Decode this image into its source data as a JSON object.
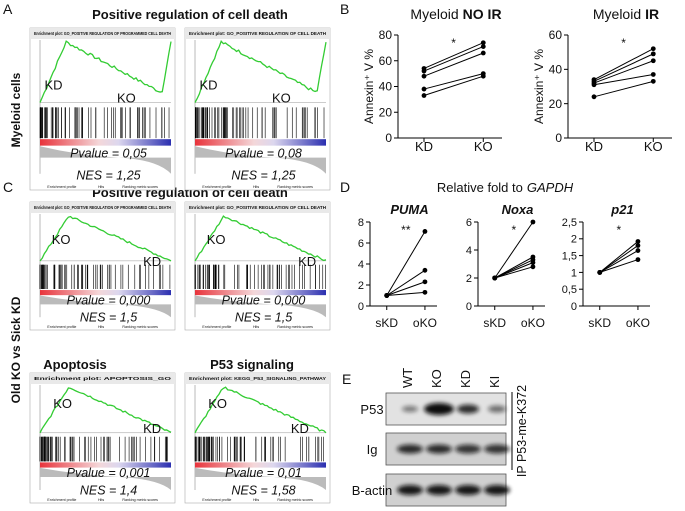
{
  "panel_a": {
    "label": "A",
    "title": "Positive regulation of cell death",
    "side_label": "Myeloid cells",
    "plots": [
      {
        "plot_title": "Enrichment plot: GO_POSITIVE REGULATION OF PROGRAMMED CELL DEATH",
        "left_label": "KD",
        "right_label": "KO",
        "pvalue": "Pvalue = 0,05",
        "nes": "NES = 1,25"
      },
      {
        "plot_title": "Enrichment plot: GO_POSITIVE REGULATION OF CELL DEATH",
        "left_label": "KD",
        "right_label": "KO",
        "pvalue": "Pvalue = 0,08",
        "nes": "NES = 1,25"
      }
    ]
  },
  "panel_b": {
    "label": "B"
  },
  "panel_c": {
    "label": "C",
    "title": "Positive regulation of cell death",
    "side_label": "Old KO vs Sick KD",
    "plots": [
      {
        "plot_title": "Enrichment plot: GO_POSITIVE REGULATION OF PROGRAMMED CELL DEATH",
        "left_label": "KO",
        "right_label": "KD",
        "pvalue": "Pvalue = 0,000",
        "nes": "NES = 1,5"
      },
      {
        "plot_title": "Enrichment plot: GO_POSITIVE REGULATION OF CELL DEATH",
        "left_label": "KO",
        "right_label": "KD",
        "pvalue": "Pvalue = 0,000",
        "nes": "NES = 1,5"
      },
      {
        "heading": "Apoptosis",
        "plot_title": "Enrichment plot: APOPTOSIS_GO",
        "left_label": "KO",
        "right_label": "KD",
        "pvalue": "Pvalue = 0,001",
        "nes": "NES = 1,4"
      },
      {
        "heading": "P53 signaling",
        "plot_title": "Enrichment plot: KEGG_P53_SIGNALING_PATHWAY",
        "left_label": "KO",
        "right_label": "KD",
        "pvalue": "Pvalue = 0,01",
        "nes": "NES = 1,58"
      }
    ]
  },
  "gsea_legend": [
    "Enrichment profile",
    "Hits",
    "Ranking metric scores"
  ],
  "panel_d": {
    "label": "D",
    "title": "Relative fold to",
    "title_italic": "GAPDH"
  },
  "panel_e": {
    "label": "E",
    "lanes": [
      "WT",
      "KO",
      "KD",
      "KI"
    ],
    "rows": [
      "P53",
      "Ig",
      "B-actin"
    ],
    "side_label": "IP P53-me-K372"
  },
  "chart_data": [
    {
      "type": "line",
      "title": "Myeloid",
      "title_bold": "NO IR",
      "ylabel": "Annexin⁺ V %",
      "categories": [
        "KD",
        "KO"
      ],
      "color": "#000000",
      "series": [
        {
          "values": [
            54,
            74
          ]
        },
        {
          "values": [
            52,
            71
          ]
        },
        {
          "values": [
            48,
            66
          ]
        },
        {
          "values": [
            38,
            50
          ]
        },
        {
          "values": [
            33,
            48
          ]
        }
      ],
      "ylim": [
        0,
        80
      ],
      "yticks": [
        0,
        20,
        40,
        60,
        80
      ],
      "annotation": "*"
    },
    {
      "type": "line",
      "title": "Myeloid",
      "title_bold": "IR",
      "ylabel": "Annexin⁺ V %",
      "categories": [
        "KD",
        "KO"
      ],
      "color": "#000000",
      "series": [
        {
          "values": [
            34,
            52
          ]
        },
        {
          "values": [
            33,
            49
          ]
        },
        {
          "values": [
            32,
            45
          ]
        },
        {
          "values": [
            31,
            37
          ]
        },
        {
          "values": [
            24,
            33
          ]
        }
      ],
      "ylim": [
        0,
        60
      ],
      "yticks": [
        0,
        20,
        40,
        60
      ],
      "annotation": "*"
    },
    {
      "type": "line",
      "title_bold": "PUMA",
      "categories": [
        "sKD",
        "oKO"
      ],
      "color": "#000000",
      "series": [
        {
          "values": [
            1,
            7.1
          ]
        },
        {
          "values": [
            1,
            3.4
          ]
        },
        {
          "values": [
            1,
            2.3
          ]
        },
        {
          "values": [
            1,
            1.3
          ]
        }
      ],
      "ylim": [
        0,
        8
      ],
      "yticks": [
        0,
        2,
        4,
        6,
        8
      ],
      "annotation": "**"
    },
    {
      "type": "line",
      "title_bold": "Noxa",
      "categories": [
        "sKD",
        "oKO"
      ],
      "color": "#000000",
      "series": [
        {
          "values": [
            2,
            6
          ]
        },
        {
          "values": [
            2,
            3.5
          ]
        },
        {
          "values": [
            2,
            3.3
          ]
        },
        {
          "values": [
            2,
            3.1
          ]
        },
        {
          "values": [
            2,
            2.8
          ]
        }
      ],
      "ylim": [
        0,
        6
      ],
      "yticks": [
        0,
        2,
        4,
        6
      ],
      "annotation": "*"
    },
    {
      "type": "line",
      "title_bold": "p21",
      "categories": [
        "sKD",
        "oKO"
      ],
      "color": "#000000",
      "series": [
        {
          "values": [
            1,
            1.92
          ]
        },
        {
          "values": [
            1,
            1.8
          ]
        },
        {
          "values": [
            1,
            1.65
          ]
        },
        {
          "values": [
            1,
            1.38
          ]
        }
      ],
      "ylim": [
        0,
        2.5
      ],
      "yticks": [
        0,
        {
          "value": 0.5,
          "label": "0,5"
        },
        1,
        {
          "value": 1.5,
          "label": "1,5"
        },
        2,
        {
          "value": 2.5,
          "label": "2,5"
        }
      ],
      "annotation": "*"
    }
  ]
}
